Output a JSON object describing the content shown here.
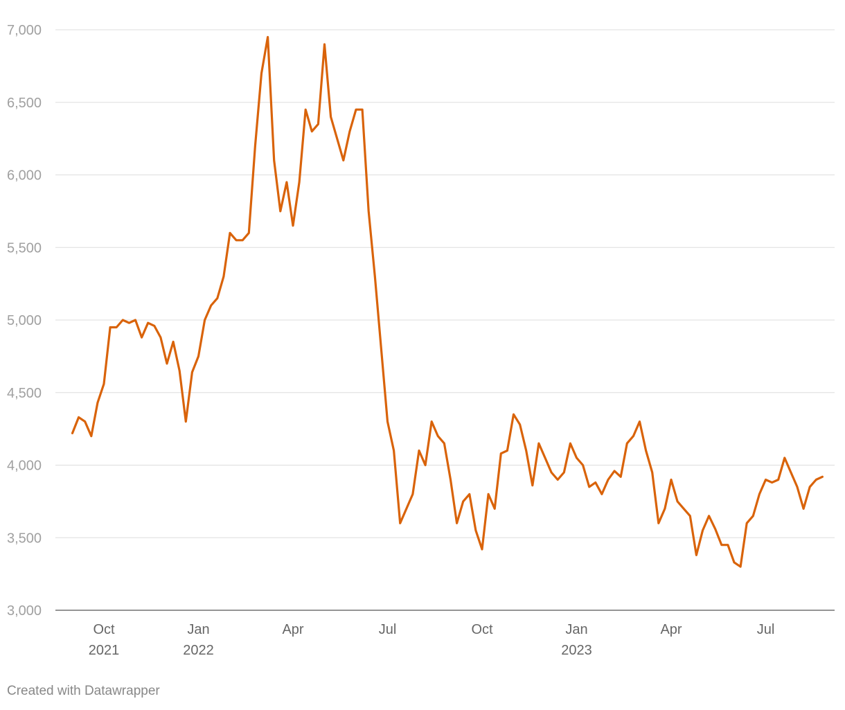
{
  "chart_data": {
    "type": "line",
    "categories": [
      null,
      null,
      null,
      null,
      null,
      "Oct",
      null,
      null,
      null,
      null,
      null,
      null,
      null,
      null,
      null,
      null,
      null,
      null,
      null,
      null,
      "Jan",
      null,
      null,
      null,
      null,
      null,
      null,
      null,
      null,
      null,
      null,
      null,
      null,
      null,
      null,
      "Apr",
      null,
      null,
      null,
      null,
      null,
      null,
      null,
      null,
      null,
      null,
      null,
      null,
      null,
      null,
      "Jul",
      null,
      null,
      null,
      null,
      null,
      null,
      null,
      null,
      null,
      null,
      null,
      null,
      null,
      null,
      "Oct",
      null,
      null,
      null,
      null,
      null,
      null,
      null,
      null,
      null,
      null,
      null,
      null,
      null,
      null,
      "Jan",
      null,
      null,
      null,
      null,
      null,
      null,
      null,
      null,
      null,
      null,
      null,
      null,
      null,
      null,
      "Apr",
      null,
      null,
      null,
      null,
      null,
      null,
      null,
      null,
      null,
      null,
      null,
      null,
      null,
      null,
      "Jul",
      null,
      null,
      null,
      null,
      null,
      null,
      null,
      null,
      null
    ],
    "category_years": [
      null,
      null,
      null,
      null,
      null,
      "2021",
      null,
      null,
      null,
      null,
      null,
      null,
      null,
      null,
      null,
      null,
      null,
      null,
      null,
      null,
      "2022",
      null,
      null,
      null,
      null,
      null,
      null,
      null,
      null,
      null,
      null,
      null,
      null,
      null,
      null,
      null,
      null,
      null,
      null,
      null,
      null,
      null,
      null,
      null,
      null,
      null,
      null,
      null,
      null,
      null,
      null,
      null,
      null,
      null,
      null,
      null,
      null,
      null,
      null,
      null,
      null,
      null,
      null,
      null,
      null,
      null,
      null,
      null,
      null,
      null,
      null,
      null,
      null,
      null,
      null,
      null,
      null,
      null,
      null,
      null,
      "2023",
      null,
      null,
      null,
      null,
      null,
      null,
      null,
      null,
      null,
      null,
      null,
      null,
      null,
      null,
      null,
      null,
      null,
      null,
      null,
      null,
      null,
      null,
      null,
      null,
      null,
      null,
      null,
      null,
      null,
      null,
      null,
      null,
      null,
      null,
      null,
      null,
      null,
      null,
      null
    ],
    "values": [
      4220,
      4330,
      4300,
      4200,
      4430,
      4560,
      4950,
      4950,
      5000,
      4980,
      5000,
      4880,
      4980,
      4960,
      4880,
      4700,
      4850,
      4650,
      4300,
      4640,
      4750,
      5000,
      5100,
      5150,
      5300,
      5600,
      5550,
      5550,
      5600,
      6200,
      6700,
      6950,
      6100,
      5750,
      5950,
      5650,
      5950,
      6450,
      6300,
      6350,
      6900,
      6400,
      6250,
      6100,
      6300,
      6450,
      6450,
      5750,
      5300,
      4800,
      4300,
      4100,
      3600,
      3700,
      3800,
      4100,
      4000,
      4300,
      4200,
      4150,
      3900,
      3600,
      3750,
      3800,
      3550,
      3420,
      3800,
      3700,
      4080,
      4100,
      4350,
      4280,
      4100,
      3860,
      4150,
      4050,
      3950,
      3900,
      3950,
      4150,
      4050,
      4000,
      3850,
      3880,
      3800,
      3900,
      3960,
      3920,
      4150,
      4200,
      4300,
      4100,
      3950,
      3600,
      3700,
      3900,
      3750,
      3700,
      3650,
      3380,
      3550,
      3650,
      3560,
      3450,
      3450,
      3330,
      3300,
      3600,
      3650,
      3800,
      3900,
      3880,
      3900,
      4050,
      3950,
      3850,
      3700,
      3850,
      3900,
      3920
    ],
    "color": "#d9630a",
    "ylim": [
      3000,
      7000
    ],
    "yticks": [
      {
        "value": 3000,
        "label": "3,000"
      },
      {
        "value": 3500,
        "label": "3,500"
      },
      {
        "value": 4000,
        "label": "4,000"
      },
      {
        "value": 4500,
        "label": "4,500"
      },
      {
        "value": 5000,
        "label": "5,000"
      },
      {
        "value": 5500,
        "label": "5,500"
      },
      {
        "value": 6000,
        "label": "6,000"
      },
      {
        "value": 6500,
        "label": "6,500"
      },
      {
        "value": 7000,
        "label": "7,000"
      }
    ],
    "grid": true,
    "footer": "Created with Datawrapper"
  }
}
